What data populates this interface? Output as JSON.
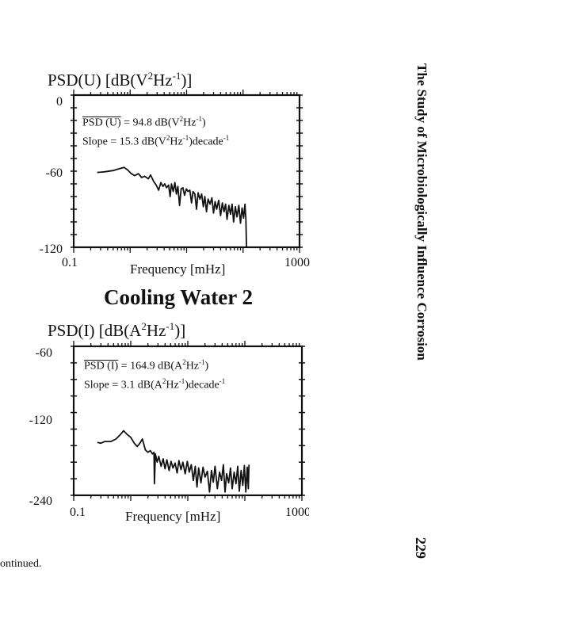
{
  "running_header": "The Study of Microbiologically Influence Corrosion",
  "page_number": "229",
  "caption_fragment": "ontinued.",
  "section_title": "Cooling Water 2",
  "chart_data": [
    {
      "type": "line",
      "title_main": "PSD(U) [dB(V",
      "title_sup1": "2",
      "title_mid": "Hz",
      "title_sup2": "-1",
      "title_end": ")]",
      "xlabel": "Frequency [mHz]",
      "xscale": "log",
      "xlim": [
        0.1,
        1000
      ],
      "ylim": [
        -120,
        0
      ],
      "x_tick_labels": [
        "0.1",
        "1000"
      ],
      "y_tick_labels": [
        "0",
        "-60",
        "-120"
      ],
      "y_tick_values": [
        0,
        -60,
        -120
      ],
      "y_minor_step": 10,
      "annotation": {
        "psd_label": "PSD (U)",
        "psd_value": " = 94.8 dB(V",
        "psd_sup1": "2",
        "psd_unit": "Hz",
        "psd_sup2": "-1",
        "psd_end": ")",
        "slope_label": "Slope = 15.3 dB(V",
        "slope_sup1": "2",
        "slope_unit": "Hz",
        "slope_sup2": "-1",
        "slope_mid": ")decade",
        "slope_sup3": "-1"
      },
      "series": [
        {
          "name": "PSD(U)",
          "points": [
            [
              0.26,
              -61
            ],
            [
              0.35,
              -60.5
            ],
            [
              0.5,
              -59.5
            ],
            [
              0.65,
              -58
            ],
            [
              0.78,
              -57
            ],
            [
              0.9,
              -59
            ],
            [
              1.05,
              -62
            ],
            [
              1.2,
              -63.5
            ],
            [
              1.4,
              -62
            ],
            [
              1.6,
              -65
            ],
            [
              1.8,
              -64
            ],
            [
              2.1,
              -66
            ],
            [
              2.3,
              -63
            ],
            [
              2.6,
              -68
            ],
            [
              2.9,
              -71
            ],
            [
              3.2,
              -75
            ],
            [
              3.5,
              -69
            ],
            [
              3.8,
              -72
            ],
            [
              4.1,
              -70
            ],
            [
              4.4,
              -73
            ],
            [
              4.8,
              -71
            ],
            [
              5.1,
              -80
            ],
            [
              5.4,
              -70
            ],
            [
              5.8,
              -76
            ],
            [
              6.2,
              -69
            ],
            [
              6.6,
              -78
            ],
            [
              7.0,
              -72
            ],
            [
              7.5,
              -87
            ],
            [
              8.0,
              -74
            ],
            [
              8.6,
              -73
            ],
            [
              9.2,
              -79
            ],
            [
              9.9,
              -74
            ],
            [
              10.6,
              -76
            ],
            [
              11.4,
              -75
            ],
            [
              12.2,
              -85
            ],
            [
              13.0,
              -76
            ],
            [
              14,
              -78
            ],
            [
              15,
              -90
            ],
            [
              16,
              -77
            ],
            [
              17.2,
              -82
            ],
            [
              18.5,
              -78
            ],
            [
              19.8,
              -88
            ],
            [
              21,
              -80
            ],
            [
              22.5,
              -92
            ],
            [
              24,
              -82
            ],
            [
              26,
              -86
            ],
            [
              28,
              -81
            ],
            [
              30,
              -93
            ],
            [
              32,
              -84
            ],
            [
              34,
              -90
            ],
            [
              37,
              -83
            ],
            [
              40,
              -95
            ],
            [
              43,
              -85
            ],
            [
              46,
              -92
            ],
            [
              49,
              -86
            ],
            [
              52,
              -98
            ],
            [
              56,
              -87
            ],
            [
              60,
              -94
            ],
            [
              64,
              -86
            ],
            [
              68,
              -100
            ],
            [
              73,
              -88
            ],
            [
              78,
              -96
            ],
            [
              84,
              -87
            ],
            [
              90,
              -101
            ],
            [
              96,
              -89
            ],
            [
              102,
              -97
            ],
            [
              108,
              -86
            ],
            [
              112,
              -98
            ],
            [
              115,
              -120
            ]
          ]
        }
      ]
    },
    {
      "type": "line",
      "title_main": "PSD(I) [dB(A",
      "title_sup1": "2",
      "title_mid": "Hz",
      "title_sup2": "-1",
      "title_end": ")]",
      "xlabel": "Frequency [mHz]",
      "xscale": "log",
      "xlim": [
        0.1,
        1000
      ],
      "ylim": [
        -240,
        -60
      ],
      "x_tick_labels": [
        "0.1",
        "1000"
      ],
      "y_tick_labels": [
        "-60",
        "-120",
        "-240"
      ],
      "y_tick_values": [
        -60,
        -120,
        -240
      ],
      "y_minor_step": 20,
      "annotation": {
        "psd_label": "PSD (I)",
        "psd_value": " = 164.9 dB(A",
        "psd_sup1": "2",
        "psd_unit": "Hz",
        "psd_sup2": "-1",
        "psd_end": ")",
        "slope_label": "Slope = 3.1 dB(A",
        "slope_sup1": "2",
        "slope_unit": "Hz",
        "slope_sup2": "-1",
        "slope_mid": ")decade",
        "slope_sup3": "-1"
      },
      "series": [
        {
          "name": "PSD(I)",
          "points": [
            [
              0.26,
              -176
            ],
            [
              0.3,
              -177
            ],
            [
              0.35,
              -175
            ],
            [
              0.45,
              -175
            ],
            [
              0.55,
              -172
            ],
            [
              0.65,
              -167
            ],
            [
              0.75,
              -162
            ],
            [
              0.85,
              -166
            ],
            [
              1.0,
              -170
            ],
            [
              1.15,
              -177
            ],
            [
              1.3,
              -181
            ],
            [
              1.45,
              -177
            ],
            [
              1.6,
              -172
            ],
            [
              1.8,
              -185
            ],
            [
              2.0,
              -188
            ],
            [
              2.2,
              -186
            ],
            [
              2.4,
              -190
            ],
            [
              2.55,
              -188
            ],
            [
              2.6,
              -226
            ],
            [
              2.7,
              -190
            ],
            [
              2.9,
              -200
            ],
            [
              3.1,
              -193
            ],
            [
              3.4,
              -205
            ],
            [
              3.7,
              -196
            ],
            [
              4.0,
              -208
            ],
            [
              4.3,
              -197
            ],
            [
              4.7,
              -210
            ],
            [
              5.1,
              -199
            ],
            [
              5.5,
              -207
            ],
            [
              6.0,
              -201
            ],
            [
              6.5,
              -213
            ],
            [
              7.0,
              -198
            ],
            [
              7.6,
              -209
            ],
            [
              8.2,
              -200
            ],
            [
              9,
              -214
            ],
            [
              9.8,
              -199
            ],
            [
              10.6,
              -212
            ],
            [
              11.5,
              -203
            ],
            [
              12.5,
              -222
            ],
            [
              13.5,
              -205
            ],
            [
              14.5,
              -230
            ],
            [
              15.5,
              -207
            ],
            [
              17,
              -225
            ],
            [
              18.5,
              -206
            ],
            [
              20,
              -218
            ],
            [
              22,
              -211
            ],
            [
              24,
              -236
            ],
            [
              26,
              -210
            ],
            [
              28,
              -224
            ],
            [
              30,
              -205
            ],
            [
              33,
              -232
            ],
            [
              36,
              -212
            ],
            [
              39,
              -222
            ],
            [
              42,
              -203
            ],
            [
              45,
              -236
            ],
            [
              48,
              -214
            ],
            [
              52,
              -225
            ],
            [
              56,
              -207
            ],
            [
              60,
              -232
            ],
            [
              65,
              -212
            ],
            [
              70,
              -226
            ],
            [
              75,
              -205
            ],
            [
              80,
              -235
            ],
            [
              86,
              -210
            ],
            [
              92,
              -228
            ],
            [
              98,
              -204
            ],
            [
              104,
              -236
            ],
            [
              110,
              -206
            ],
            [
              115,
              -232
            ],
            [
              118,
              -203
            ]
          ]
        }
      ]
    }
  ]
}
